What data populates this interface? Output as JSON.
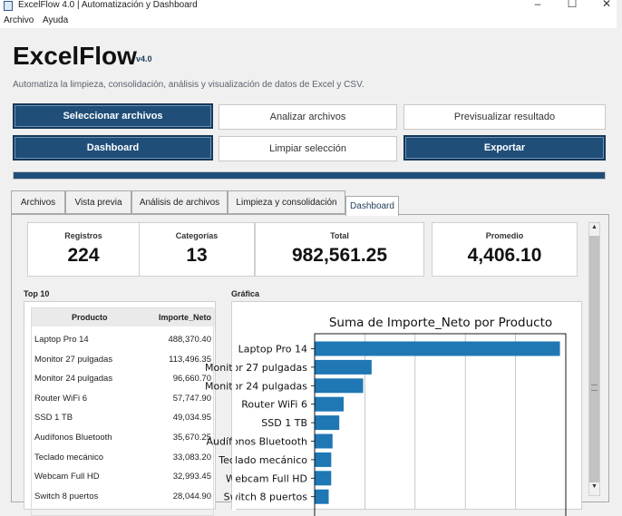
{
  "window": {
    "title": "ExcelFlow 4.0 | Automatización y Dashboard"
  },
  "menu": [
    "Archivo",
    "Ayuda"
  ],
  "header": {
    "brand": "ExcelFlow",
    "version": "v4.0",
    "tagline": "Automatiza la limpieza, consolidación, análisis y visualización de datos de Excel y CSV."
  },
  "buttons": {
    "select_files": "Seleccionar archivos",
    "analyze_files": "Analizar archivos",
    "preview_result": "Previsualizar resultado",
    "dashboard": "Dashboard",
    "clear_selection": "Limpiar selección",
    "export": "Exportar"
  },
  "progress": {
    "value": 1.0
  },
  "tabs": [
    "Archivos",
    "Vista previa",
    "Análisis de archivos",
    "Limpieza y consolidación",
    "Dashboard"
  ],
  "active_tab": "Dashboard",
  "stats": [
    {
      "label": "Registros",
      "value": "224"
    },
    {
      "label": "Categorías",
      "value": "13"
    },
    {
      "label": "Total",
      "value": "982,561.25"
    },
    {
      "label": "Promedio",
      "value": "4,406.10"
    }
  ],
  "top10": {
    "section_label": "Top 10",
    "columns": [
      "Producto",
      "Importe_Neto"
    ],
    "rows": [
      [
        "Laptop Pro 14",
        "488,370.40"
      ],
      [
        "Monitor 27 pulgadas",
        "113,496.35"
      ],
      [
        "Monitor 24 pulgadas",
        "96,660.70"
      ],
      [
        "Router WiFi 6",
        "57,747.90"
      ],
      [
        "SSD 1 TB",
        "49,034.95"
      ],
      [
        "Audífonos Bluetooth",
        "35,670.25"
      ],
      [
        "Teclado mecánico",
        "33,083.20"
      ],
      [
        "Webcam Full HD",
        "32,993.45"
      ],
      [
        "Switch 8 puertos",
        "28,044.90"
      ]
    ]
  },
  "chart_section_label": "Gráfica",
  "chart_data": {
    "type": "bar",
    "orientation": "horizontal",
    "title": "Suma de Importe_Neto por Producto",
    "categories": [
      "Laptop Pro 14",
      "Monitor 27 pulgadas",
      "Monitor 24 pulgadas",
      "Router WiFi 6",
      "SSD 1 TB",
      "Audífonos Bluetooth",
      "Teclado mecánico",
      "Webcam Full HD",
      "Switch 8 puertos"
    ],
    "values": [
      488370.4,
      113496.35,
      96660.7,
      57747.9,
      49034.95,
      35670.25,
      33083.2,
      32993.45,
      28044.9
    ],
    "xlim": [
      0,
      500000
    ],
    "grid": true,
    "color": "#1f77b4"
  },
  "colors": {
    "primary": "#1f4e79",
    "bar": "#1f77b4"
  }
}
